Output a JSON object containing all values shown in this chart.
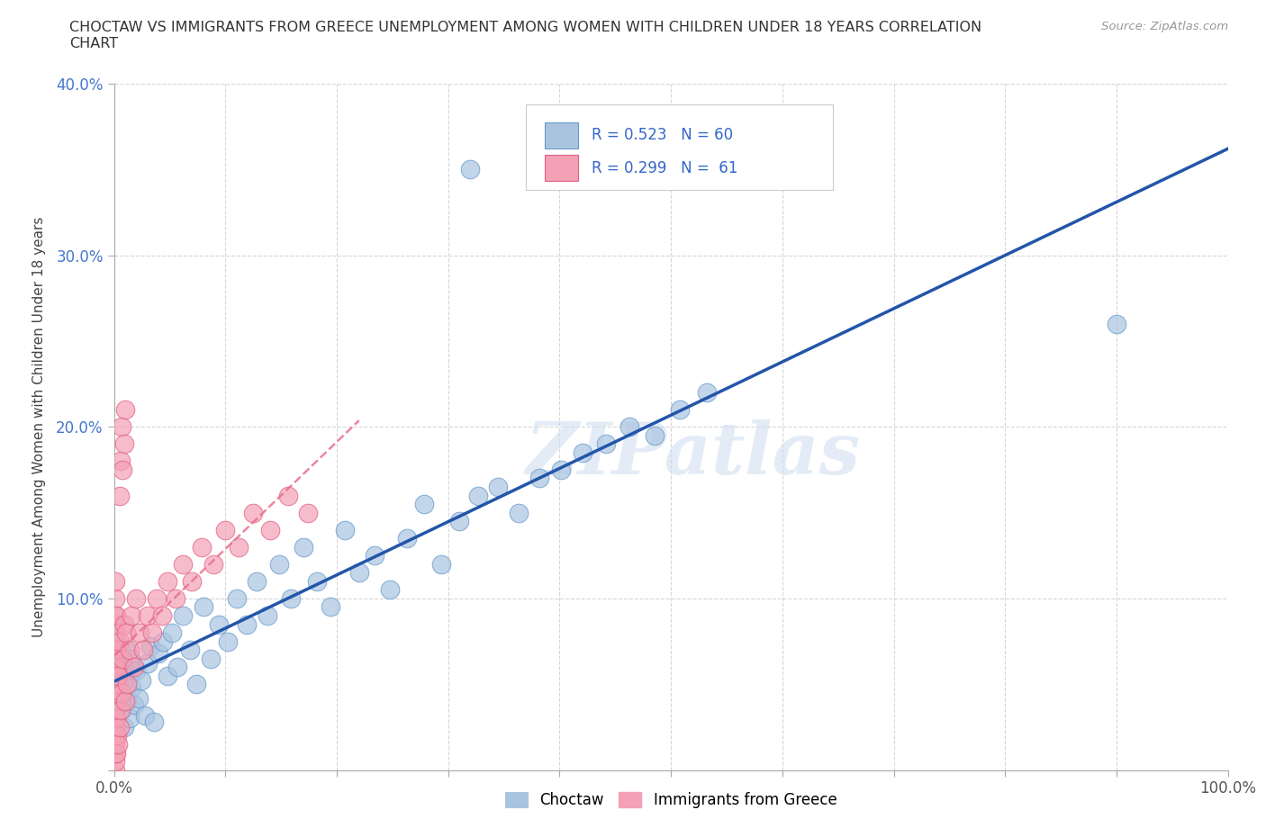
{
  "title": "CHOCTAW VS IMMIGRANTS FROM GREECE UNEMPLOYMENT AMONG WOMEN WITH CHILDREN UNDER 18 YEARS CORRELATION\nCHART",
  "source": "Source: ZipAtlas.com",
  "ylabel": "Unemployment Among Women with Children Under 18 years",
  "xlim": [
    0,
    1.0
  ],
  "ylim": [
    0,
    0.4
  ],
  "xticks": [
    0.0,
    0.1,
    0.2,
    0.3,
    0.4,
    0.5,
    0.6,
    0.7,
    0.8,
    0.9,
    1.0
  ],
  "yticks": [
    0.0,
    0.1,
    0.2,
    0.3,
    0.4
  ],
  "choctaw_color": "#aac4e0",
  "choctaw_edge": "#6699cc",
  "greece_color": "#f4a0b5",
  "greece_edge": "#e06080",
  "choctaw_line_color": "#2255aa",
  "greece_line_color": "#e87090",
  "choctaw_label": "Choctaw",
  "greece_label": "Immigrants from Greece",
  "background_color": "#ffffff",
  "grid_color": "#cccccc",
  "choctaw_x": [
    0.005,
    0.007,
    0.008,
    0.009,
    0.01,
    0.011,
    0.012,
    0.013,
    0.014,
    0.015,
    0.016,
    0.018,
    0.02,
    0.022,
    0.025,
    0.028,
    0.03,
    0.033,
    0.036,
    0.04,
    0.044,
    0.048,
    0.052,
    0.057,
    0.062,
    0.068,
    0.074,
    0.08,
    0.087,
    0.094,
    0.102,
    0.11,
    0.119,
    0.128,
    0.138,
    0.148,
    0.159,
    0.17,
    0.182,
    0.194,
    0.207,
    0.22,
    0.234,
    0.248,
    0.263,
    0.278,
    0.294,
    0.31,
    0.327,
    0.345,
    0.363,
    0.382,
    0.401,
    0.421,
    0.442,
    0.463,
    0.485,
    0.508,
    0.532,
    0.9
  ],
  "choctaw_y": [
    0.05,
    0.035,
    0.06,
    0.025,
    0.045,
    0.07,
    0.04,
    0.055,
    0.03,
    0.065,
    0.048,
    0.038,
    0.058,
    0.042,
    0.052,
    0.032,
    0.062,
    0.072,
    0.028,
    0.068,
    0.075,
    0.055,
    0.08,
    0.06,
    0.09,
    0.07,
    0.05,
    0.095,
    0.065,
    0.085,
    0.075,
    0.1,
    0.085,
    0.11,
    0.09,
    0.12,
    0.1,
    0.13,
    0.11,
    0.095,
    0.14,
    0.115,
    0.125,
    0.105,
    0.135,
    0.155,
    0.12,
    0.145,
    0.16,
    0.165,
    0.15,
    0.17,
    0.175,
    0.185,
    0.19,
    0.2,
    0.195,
    0.21,
    0.22,
    0.26
  ],
  "choctaw_outlier_x": [
    0.32
  ],
  "choctaw_outlier_y": [
    0.35
  ],
  "greece_x": [
    0.001,
    0.001,
    0.001,
    0.001,
    0.001,
    0.001,
    0.001,
    0.001,
    0.001,
    0.001,
    0.001,
    0.001,
    0.001,
    0.001,
    0.001,
    0.001,
    0.001,
    0.001,
    0.001,
    0.001,
    0.001,
    0.002,
    0.002,
    0.002,
    0.002,
    0.002,
    0.003,
    0.003,
    0.004,
    0.004,
    0.005,
    0.005,
    0.006,
    0.007,
    0.008,
    0.009,
    0.01,
    0.011,
    0.012,
    0.014,
    0.016,
    0.018,
    0.02,
    0.023,
    0.026,
    0.03,
    0.034,
    0.038,
    0.043,
    0.048,
    0.055,
    0.062,
    0.07,
    0.079,
    0.089,
    0.1,
    0.112,
    0.125,
    0.14,
    0.156,
    0.174
  ],
  "greece_y": [
    0.0,
    0.005,
    0.01,
    0.015,
    0.02,
    0.025,
    0.03,
    0.035,
    0.04,
    0.045,
    0.05,
    0.055,
    0.06,
    0.065,
    0.07,
    0.075,
    0.08,
    0.085,
    0.09,
    0.1,
    0.11,
    0.01,
    0.03,
    0.05,
    0.07,
    0.09,
    0.02,
    0.06,
    0.015,
    0.055,
    0.025,
    0.075,
    0.035,
    0.045,
    0.065,
    0.085,
    0.04,
    0.08,
    0.05,
    0.07,
    0.09,
    0.06,
    0.1,
    0.08,
    0.07,
    0.09,
    0.08,
    0.1,
    0.09,
    0.11,
    0.1,
    0.12,
    0.11,
    0.13,
    0.12,
    0.14,
    0.13,
    0.15,
    0.14,
    0.16,
    0.15
  ],
  "greece_high_x": [
    0.005,
    0.006,
    0.007,
    0.008,
    0.009,
    0.01
  ],
  "greece_high_y": [
    0.16,
    0.18,
    0.2,
    0.175,
    0.19,
    0.21
  ]
}
